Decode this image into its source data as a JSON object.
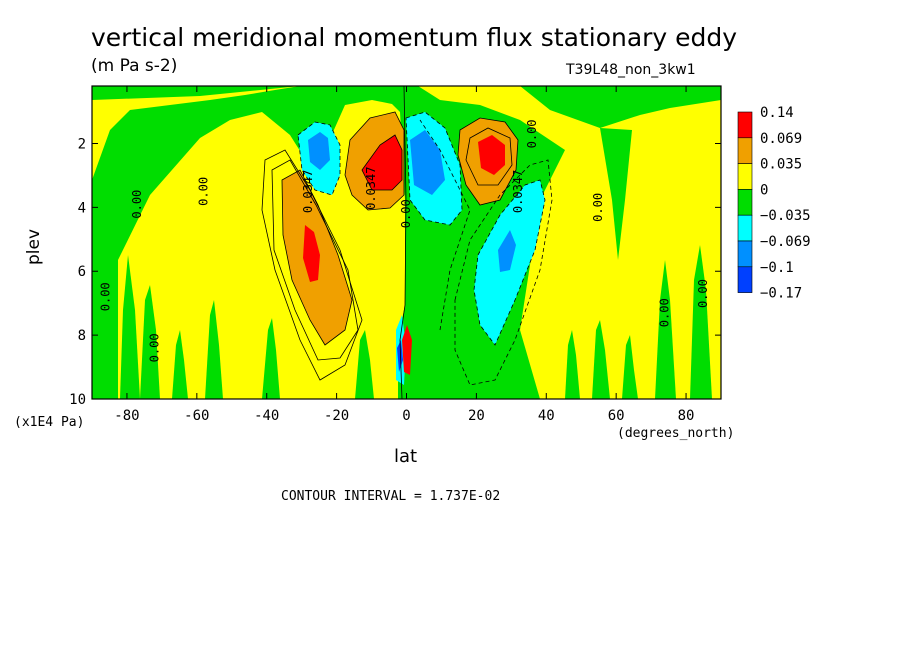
{
  "chart_data": {
    "type": "heatmap",
    "subtype": "filled-contour",
    "title": "vertical meridional momentum flux stationary eddy",
    "units": "(m Pa s-2)",
    "run_id": "T39L48_non_3kw1",
    "xlabel": "lat",
    "x_units": "(degrees_north)",
    "ylabel": "plev",
    "y_units": "(x1E4 Pa)",
    "xlim": [
      -90,
      90
    ],
    "ylim": [
      10,
      0.2
    ],
    "x_ticks": [
      -80,
      -60,
      -40,
      -20,
      0,
      20,
      40,
      60,
      80
    ],
    "y_ticks": [
      2,
      4,
      6,
      8,
      10
    ],
    "contour_interval_label": "CONTOUR INTERVAL = 1.737E-02",
    "colorbar": {
      "labels": [
        "0.14",
        "0.069",
        "0.035",
        "0",
        "−0.035",
        "−0.069",
        "−0.1",
        "−0.17"
      ],
      "colors": [
        "#ff0000",
        "#f0a000",
        "#ffff00",
        "#00dd00",
        "#00ffff",
        "#0090ff",
        "#0040ff"
      ]
    },
    "contour_labels": [
      "0.00",
      "0.0347",
      "-0.0347"
    ],
    "features": [
      {
        "kind": "max",
        "lat": -26,
        "plev": 5.2,
        "value": 0.1
      },
      {
        "kind": "max",
        "lat": -8,
        "plev": 2.6,
        "value": 0.14
      },
      {
        "kind": "max",
        "lat": 24,
        "plev": 2.3,
        "value": 0.14
      },
      {
        "kind": "min",
        "lat": -24,
        "plev": 2.2,
        "value": -0.069
      },
      {
        "kind": "min",
        "lat": 5,
        "plev": 2.6,
        "value": -0.1
      },
      {
        "kind": "min",
        "lat": 28,
        "plev": 5.6,
        "value": -0.069
      },
      {
        "kind": "max",
        "lat": 0,
        "plev": 8.6,
        "value": 0.14
      }
    ]
  }
}
